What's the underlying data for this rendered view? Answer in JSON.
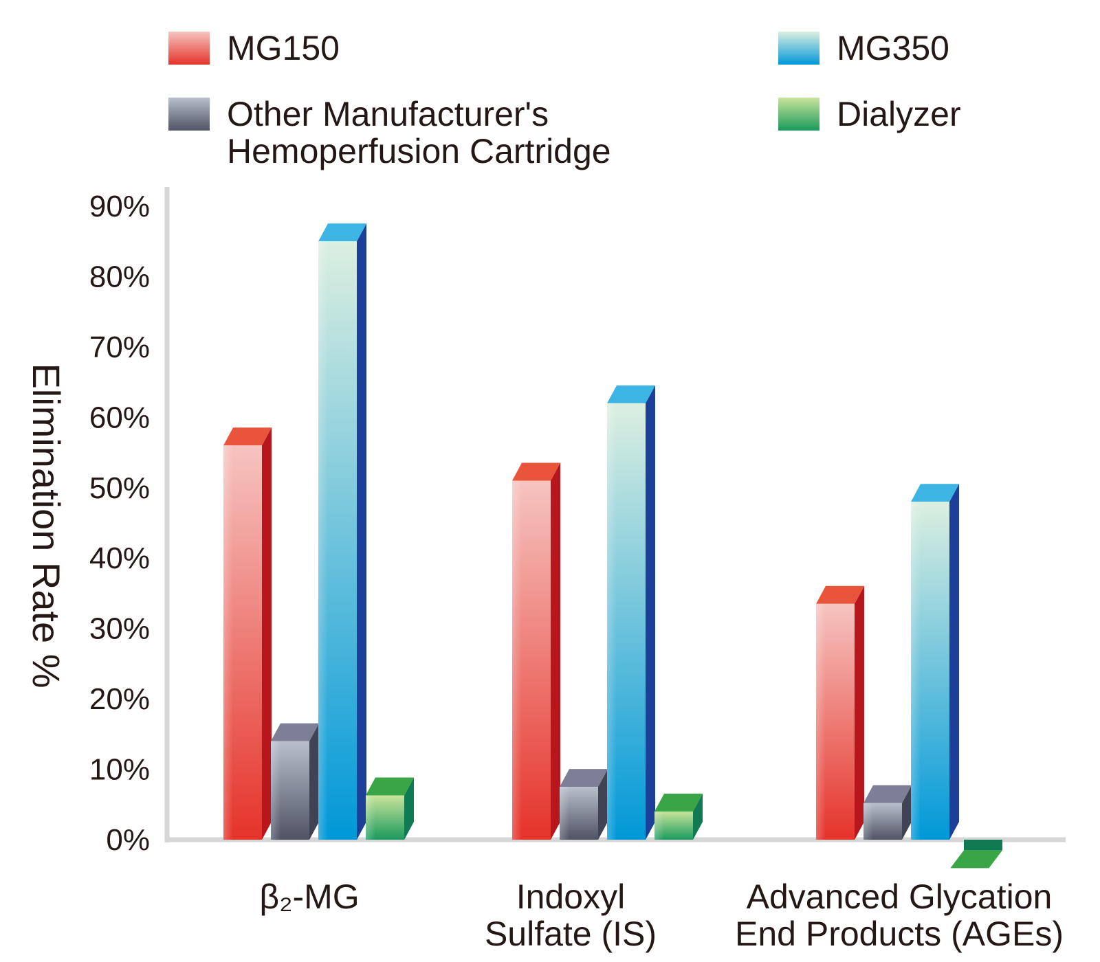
{
  "chart_data": {
    "type": "bar",
    "ylabel": "Elimination Rate %",
    "ylim": [
      0,
      90
    ],
    "yticks": [
      0,
      10,
      20,
      30,
      40,
      50,
      60,
      70,
      80,
      90
    ],
    "ytick_labels": [
      "0%",
      "10%",
      "20%",
      "30%",
      "40%",
      "50%",
      "60%",
      "70%",
      "80%",
      "90%"
    ],
    "categories": [
      {
        "label_lines": [
          "β₂-MG"
        ]
      },
      {
        "label_lines": [
          "Indoxyl",
          "Sulfate (IS)"
        ]
      },
      {
        "label_lines": [
          "Advanced Glycation",
          "End Products (AGEs)"
        ]
      }
    ],
    "series": [
      {
        "name": "MG150",
        "values": [
          56,
          51,
          33.5
        ]
      },
      {
        "name": "Other Manufacturer's Hemoperfusion Cartridge",
        "values": [
          14,
          7.5,
          5.2
        ]
      },
      {
        "name": "MG350",
        "values": [
          85,
          62,
          48
        ]
      },
      {
        "name": "Dialyzer",
        "values": [
          6.3,
          4,
          -1.5
        ]
      }
    ],
    "legend_position": "top",
    "grid": false
  },
  "legend": [
    {
      "lines": [
        "MG150"
      ],
      "key": "red"
    },
    {
      "lines": [
        "MG350"
      ],
      "key": "blue"
    },
    {
      "lines": [
        "Other Manufacturer's",
        "Hemoperfusion Cartridge"
      ],
      "key": "gray"
    },
    {
      "lines": [
        "Dialyzer"
      ],
      "key": "green"
    }
  ],
  "colors": {
    "red": {
      "top": "#e8553a",
      "front_top": "#f6c4c0",
      "front_bottom": "#e5332a",
      "side": "#b8161d"
    },
    "gray": {
      "top": "#7c7f95",
      "front_top": "#b8c0cc",
      "front_bottom": "#4f5364",
      "side": "#3f4353"
    },
    "blue": {
      "top": "#3cb5e5",
      "front_top": "#dcefe0",
      "front_bottom": "#0098d8",
      "side": "#1d3f99"
    },
    "green": {
      "top": "#3aa546",
      "front_top": "#c9e49b",
      "front_bottom": "#1a9a5c",
      "side": "#107a55"
    },
    "axis": "#d6d6d6"
  }
}
